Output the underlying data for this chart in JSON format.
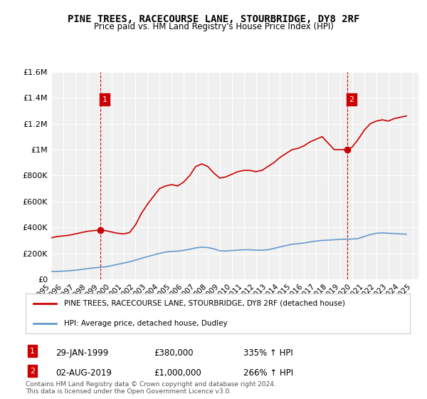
{
  "title": "PINE TREES, RACECOURSE LANE, STOURBRIDGE, DY8 2RF",
  "subtitle": "Price paid vs. HM Land Registry's House Price Index (HPI)",
  "red_label": "PINE TREES, RACECOURSE LANE, STOURBRIDGE, DY8 2RF (detached house)",
  "blue_label": "HPI: Average price, detached house, Dudley",
  "annotation1_date": "29-JAN-1999",
  "annotation1_price": "£380,000",
  "annotation1_hpi": "335% ↑ HPI",
  "annotation2_date": "02-AUG-2019",
  "annotation2_price": "£1,000,000",
  "annotation2_hpi": "266% ↑ HPI",
  "footer": "Contains HM Land Registry data © Crown copyright and database right 2024.\nThis data is licensed under the Open Government Licence v3.0.",
  "background_color": "#ffffff",
  "plot_bg_color": "#f0f0f0",
  "grid_color": "#ffffff",
  "red_color": "#cc0000",
  "blue_color": "#6699cc",
  "ylim": [
    0,
    1600000
  ],
  "xlim_start": 1995.0,
  "xlim_end": 2025.5,
  "red_x": [
    1995.0,
    1995.5,
    1996.0,
    1996.5,
    1997.0,
    1997.5,
    1998.0,
    1998.5,
    1999.08,
    1999.5,
    2000.0,
    2000.5,
    2001.0,
    2001.5,
    2002.0,
    2002.5,
    2003.0,
    2003.5,
    2004.0,
    2004.5,
    2005.0,
    2005.5,
    2006.0,
    2006.5,
    2007.0,
    2007.5,
    2008.0,
    2008.5,
    2009.0,
    2009.5,
    2010.0,
    2010.5,
    2011.0,
    2011.5,
    2012.0,
    2012.5,
    2013.0,
    2013.5,
    2014.0,
    2014.5,
    2015.0,
    2015.5,
    2016.0,
    2016.5,
    2017.0,
    2017.5,
    2018.0,
    2018.5,
    2019.0,
    2019.58,
    2020.0,
    2020.5,
    2021.0,
    2021.5,
    2022.0,
    2022.5,
    2023.0,
    2023.5,
    2024.0,
    2024.5
  ],
  "red_y": [
    320000,
    330000,
    335000,
    340000,
    350000,
    360000,
    370000,
    375000,
    380000,
    375000,
    365000,
    355000,
    350000,
    360000,
    420000,
    510000,
    580000,
    640000,
    700000,
    720000,
    730000,
    720000,
    750000,
    800000,
    870000,
    890000,
    870000,
    820000,
    780000,
    790000,
    810000,
    830000,
    840000,
    840000,
    830000,
    840000,
    870000,
    900000,
    940000,
    970000,
    1000000,
    1010000,
    1030000,
    1060000,
    1080000,
    1100000,
    1050000,
    1000000,
    1000000,
    1000000,
    1020000,
    1080000,
    1150000,
    1200000,
    1220000,
    1230000,
    1220000,
    1240000,
    1250000,
    1260000
  ],
  "blue_x": [
    1995.0,
    1995.5,
    1996.0,
    1996.5,
    1997.0,
    1997.5,
    1998.0,
    1998.5,
    1999.0,
    1999.5,
    2000.0,
    2000.5,
    2001.0,
    2001.5,
    2002.0,
    2002.5,
    2003.0,
    2003.5,
    2004.0,
    2004.5,
    2005.0,
    2005.5,
    2006.0,
    2006.5,
    2007.0,
    2007.5,
    2008.0,
    2008.5,
    2009.0,
    2009.5,
    2010.0,
    2010.5,
    2011.0,
    2011.5,
    2012.0,
    2012.5,
    2013.0,
    2013.5,
    2014.0,
    2014.5,
    2015.0,
    2015.5,
    2016.0,
    2016.5,
    2017.0,
    2017.5,
    2018.0,
    2018.5,
    2019.0,
    2019.5,
    2020.0,
    2020.5,
    2021.0,
    2021.5,
    2022.0,
    2022.5,
    2023.0,
    2023.5,
    2024.0,
    2024.5
  ],
  "blue_y": [
    60000,
    61000,
    63000,
    66000,
    70000,
    76000,
    82000,
    88000,
    92000,
    96000,
    105000,
    115000,
    125000,
    135000,
    148000,
    162000,
    175000,
    188000,
    200000,
    210000,
    215000,
    217000,
    223000,
    232000,
    242000,
    248000,
    245000,
    235000,
    220000,
    218000,
    222000,
    225000,
    228000,
    228000,
    225000,
    224000,
    228000,
    238000,
    250000,
    260000,
    270000,
    275000,
    280000,
    288000,
    295000,
    300000,
    302000,
    305000,
    308000,
    310000,
    310000,
    315000,
    330000,
    345000,
    355000,
    358000,
    355000,
    353000,
    350000,
    348000
  ],
  "point1_x": 1999.08,
  "point1_y": 380000,
  "point2_x": 2019.58,
  "point2_y": 1000000,
  "yticks": [
    0,
    200000,
    400000,
    600000,
    800000,
    1000000,
    1200000,
    1400000,
    1600000
  ],
  "ytick_labels": [
    "£0",
    "£200K",
    "£400K",
    "£600K",
    "£800K",
    "£1M",
    "£1.2M",
    "£1.4M",
    "£1.6M"
  ],
  "xticks": [
    1995,
    1996,
    1997,
    1998,
    1999,
    2000,
    2001,
    2002,
    2003,
    2004,
    2005,
    2006,
    2007,
    2008,
    2009,
    2010,
    2011,
    2012,
    2013,
    2014,
    2015,
    2016,
    2017,
    2018,
    2019,
    2020,
    2021,
    2022,
    2023,
    2024,
    2025
  ]
}
